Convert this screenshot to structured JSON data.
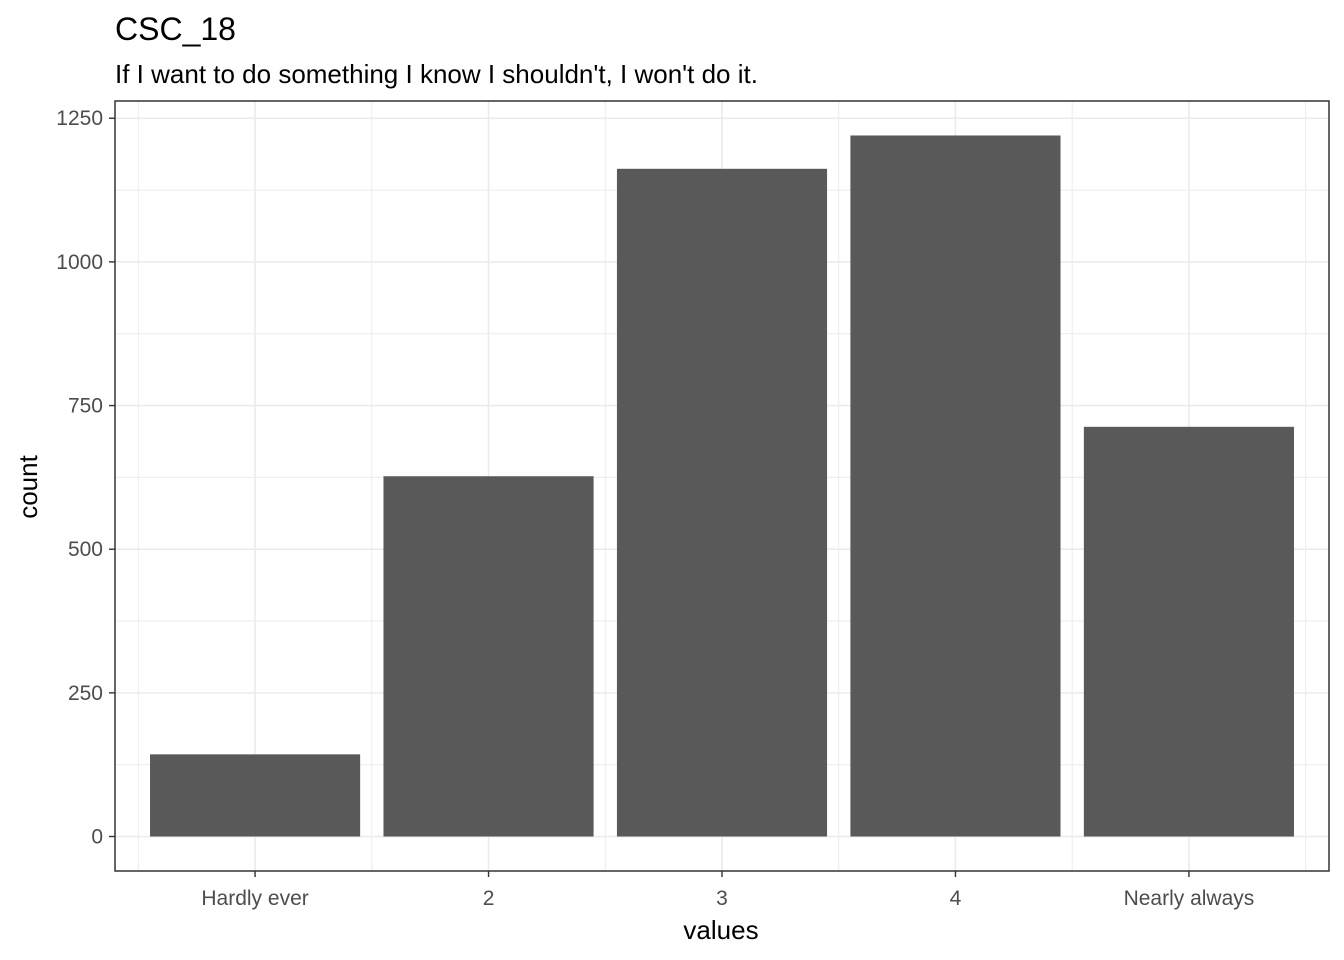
{
  "chart_data": {
    "type": "bar",
    "title": "CSC_18",
    "subtitle": "If I want to do something I know I shouldn't, I won't do it.",
    "xlabel": "values",
    "ylabel": "count",
    "categories": [
      "Hardly ever",
      "2",
      "3",
      "4",
      "Nearly always"
    ],
    "values": [
      143,
      627,
      1162,
      1220,
      713
    ],
    "ylim": [
      -60,
      1280
    ],
    "yticks": [
      0,
      250,
      500,
      750,
      1000,
      1250
    ],
    "ytick_labels": [
      "0",
      "250",
      "500",
      "750",
      "1000",
      "1250"
    ],
    "grid": true,
    "bar_color": "#595959",
    "grid_color": "#ebebeb",
    "panel_border_color": "#333333"
  }
}
